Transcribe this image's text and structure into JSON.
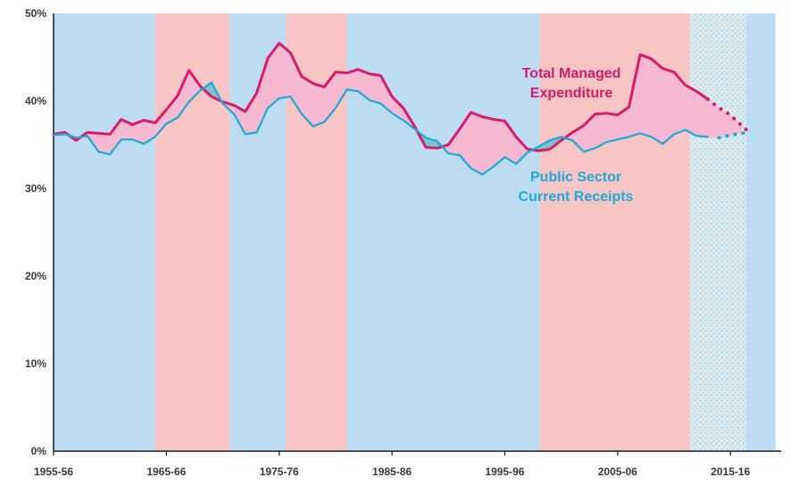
{
  "chart_data": {
    "type": "line",
    "title": "",
    "xlabel": "",
    "ylabel": "",
    "ylim": [
      0,
      50
    ],
    "yticks": [
      0,
      10,
      20,
      30,
      40,
      50
    ],
    "ytick_labels": [
      "0%",
      "10%",
      "20%",
      "30%",
      "40%",
      "50%"
    ],
    "xlim": [
      1955,
      2019.5
    ],
    "xticks": [
      1955,
      1965,
      1975,
      1985,
      1995,
      2005,
      2015
    ],
    "xtick_labels": [
      "1955-56",
      "1965-66",
      "1975-76",
      "1985-86",
      "1995-96",
      "2005-06",
      "2015-16"
    ],
    "grid": false,
    "legend": "inline-annotations",
    "background_bands": [
      {
        "start": 1955,
        "end": 1964,
        "color": "#bcdcf3"
      },
      {
        "start": 1964,
        "end": 1970.6,
        "color": "#f7c5c3"
      },
      {
        "start": 1970.6,
        "end": 1975.6,
        "color": "#bcdcf3"
      },
      {
        "start": 1975.6,
        "end": 1981,
        "color": "#f7c5c3"
      },
      {
        "start": 1981,
        "end": 1998.1,
        "color": "#bcdcf3"
      },
      {
        "start": 1998.1,
        "end": 2011.4,
        "color": "#f7c5c3"
      },
      {
        "start": 2011.4,
        "end": 2016.4,
        "color": "#bcdcf3",
        "hatched": true
      },
      {
        "start": 2016.4,
        "end": 2019,
        "color": "#bcdcf3"
      }
    ],
    "x": [
      1955,
      1956,
      1957,
      1958,
      1959,
      1960,
      1961,
      1962,
      1963,
      1964,
      1965,
      1966,
      1967,
      1968,
      1969,
      1970,
      1971,
      1972,
      1973,
      1974,
      1975,
      1976,
      1977,
      1978,
      1979,
      1980,
      1981,
      1982,
      1983,
      1984,
      1985,
      1986,
      1987,
      1988,
      1989,
      1990,
      1991,
      1992,
      1993,
      1994,
      1995,
      1996,
      1997,
      1998,
      1999,
      2000,
      2001,
      2002,
      2003,
      2004,
      2005,
      2006,
      2007,
      2008,
      2009,
      2010,
      2011,
      2012,
      2013,
      2014,
      2015,
      2016
    ],
    "series": [
      {
        "name": "Total Managed Expenditure",
        "color": "#d81b6a",
        "values": [
          36.2,
          36.4,
          35.5,
          36.4,
          36.3,
          36.2,
          37.9,
          37.3,
          37.8,
          37.5,
          39.0,
          40.6,
          43.5,
          41.7,
          40.5,
          39.9,
          39.5,
          38.8,
          40.9,
          44.9,
          46.6,
          45.5,
          42.8,
          42.0,
          41.6,
          43.3,
          43.2,
          43.6,
          43.1,
          42.9,
          40.5,
          39.2,
          37.1,
          34.7,
          34.6,
          35.0,
          36.8,
          38.7,
          38.2,
          37.9,
          37.7,
          35.9,
          34.5,
          34.3,
          34.5,
          35.5,
          36.4,
          37.2,
          38.5,
          38.6,
          38.4,
          39.3,
          45.3,
          44.8,
          43.7,
          43.3,
          41.8,
          41.1,
          40.2,
          39.2,
          38.4,
          37.2
        ],
        "forecast_from": 2013
      },
      {
        "name": "Public Sector Current Receipts",
        "color": "#1ba9d9",
        "values": [
          36.1,
          36.2,
          35.8,
          36.0,
          34.2,
          33.9,
          35.6,
          35.6,
          35.1,
          35.9,
          37.4,
          38.1,
          39.9,
          41.2,
          42.1,
          39.7,
          38.5,
          36.2,
          36.4,
          39.2,
          40.3,
          40.5,
          38.5,
          37.1,
          37.6,
          39.2,
          41.3,
          41.1,
          40.1,
          39.7,
          38.6,
          37.8,
          36.8,
          35.8,
          35.4,
          34.0,
          33.8,
          32.3,
          31.6,
          32.5,
          33.6,
          32.8,
          34.1,
          34.8,
          35.5,
          35.9,
          35.5,
          34.2,
          34.6,
          35.3,
          35.6,
          35.9,
          36.3,
          35.9,
          35.1,
          36.2,
          36.7,
          36.0,
          35.9,
          35.8,
          36.1,
          36.3
        ],
        "forecast_from": 2013.5
      }
    ],
    "annotations": [
      {
        "text": [
          "Total Managed",
          "Expenditure"
        ],
        "series": "Total Managed Expenditure"
      },
      {
        "text": [
          "Public Sector",
          "Current Receipts"
        ],
        "series": "Public Sector Current Receipts"
      }
    ],
    "fill_between": {
      "above_color": "#f7b8d1",
      "below_color": "#7ec3cf"
    }
  }
}
